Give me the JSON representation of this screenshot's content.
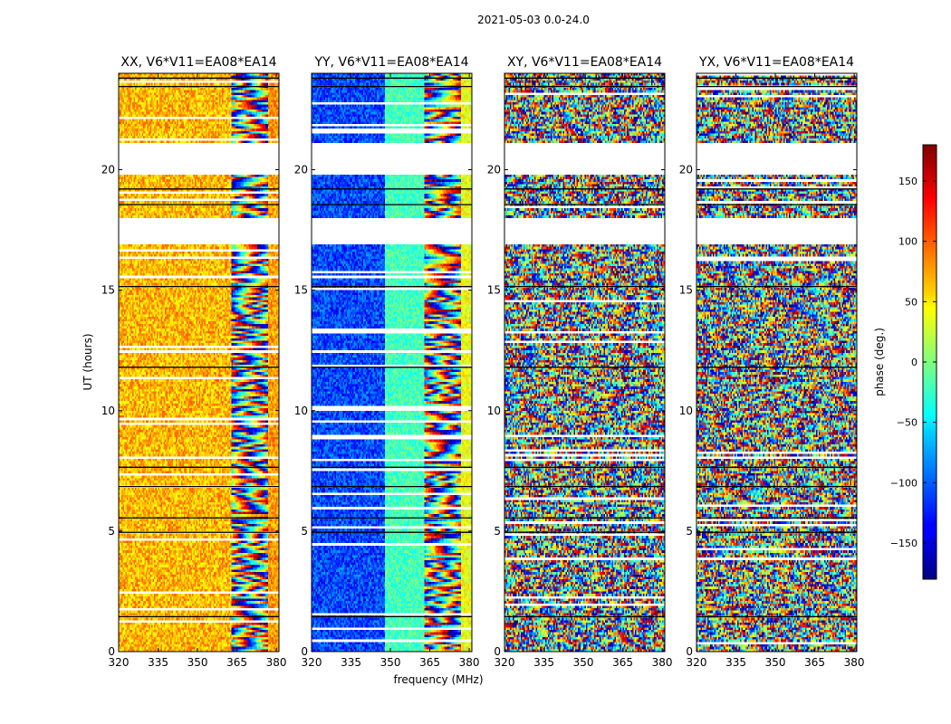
{
  "chart_data": {
    "type": "heatmap",
    "suptitle": "2021-05-03 0.0-24.0",
    "xlabel": "frequency (MHz)",
    "ylabel": "UT (hours)",
    "xlim": [
      320,
      381
    ],
    "ylim": [
      0,
      24
    ],
    "x_ticks": [
      320,
      335,
      350,
      365,
      380
    ],
    "y_ticks": [
      0,
      5,
      10,
      15,
      20
    ],
    "panels": [
      {
        "title": "XX, V6*V11=EA08*EA14",
        "polarization": "XX"
      },
      {
        "title": "YY, V6*V11=EA08*EA14",
        "polarization": "YY"
      },
      {
        "title": "XY, V6*V11=EA08*EA14",
        "polarization": "XY"
      },
      {
        "title": "YX, V6*V11=EA08*EA14",
        "polarization": "YX"
      }
    ],
    "colorbar": {
      "label": "phase (deg.)",
      "range": [
        -180,
        180
      ],
      "ticks": [
        -150,
        -100,
        -50,
        0,
        50,
        100,
        150
      ],
      "tick_labels": [
        "−150",
        "−100",
        "−50",
        "0",
        "50",
        "100",
        "150"
      ],
      "colormap": "jet"
    },
    "data_gaps_hours": [
      [
        16.95,
        17.95
      ],
      [
        19.85,
        21.05
      ]
    ]
  }
}
